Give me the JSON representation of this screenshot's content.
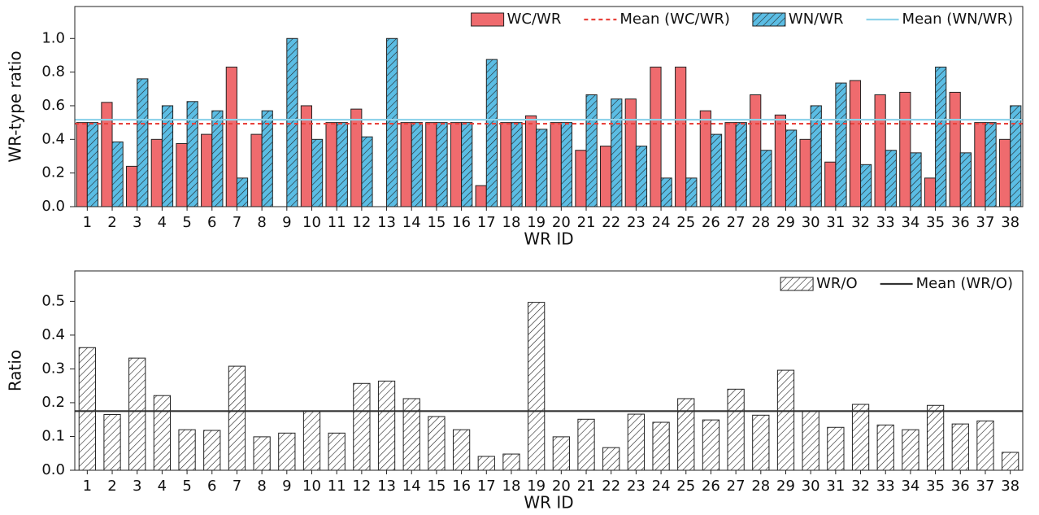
{
  "chart_data": [
    {
      "type": "bar",
      "ylabel": "WR-type ratio",
      "xlabel": "WR ID",
      "categories": [
        "1",
        "2",
        "3",
        "4",
        "5",
        "6",
        "7",
        "8",
        "9",
        "10",
        "11",
        "12",
        "13",
        "14",
        "15",
        "16",
        "17",
        "18",
        "19",
        "20",
        "21",
        "22",
        "23",
        "24",
        "25",
        "26",
        "27",
        "28",
        "29",
        "30",
        "31",
        "32",
        "33",
        "34",
        "35",
        "36",
        "37",
        "38"
      ],
      "series": [
        {
          "name": "WC/WR",
          "color": "#ef6b6e",
          "hatch": false,
          "values": [
            0.5,
            0.62,
            0.24,
            0.4,
            0.375,
            0.43,
            0.83,
            0.43,
            0,
            0.6,
            0.5,
            0.58,
            0,
            0.5,
            0.5,
            0.5,
            0.125,
            0.5,
            0.54,
            0.5,
            0.335,
            0.36,
            0.64,
            0.83,
            0.83,
            0.57,
            0.5,
            0.665,
            0.545,
            0.4,
            0.265,
            0.75,
            0.665,
            0.68,
            0.17,
            0.68,
            0.5,
            0.4
          ]
        },
        {
          "name": "WN/WR",
          "color": "#5bbde4",
          "hatch": true,
          "values": [
            0.5,
            0.385,
            0.76,
            0.6,
            0.625,
            0.57,
            0.17,
            0.57,
            1.0,
            0.4,
            0.5,
            0.415,
            1.0,
            0.5,
            0.5,
            0.5,
            0.875,
            0.5,
            0.46,
            0.5,
            0.665,
            0.64,
            0.36,
            0.17,
            0.17,
            0.43,
            0.5,
            0.335,
            0.455,
            0.6,
            0.735,
            0.25,
            0.335,
            0.32,
            0.83,
            0.32,
            0.5,
            0.6
          ]
        }
      ],
      "mean_lines": [
        {
          "name": "Mean (WC/WR)",
          "color": "#e8433d",
          "dashed": true,
          "value": 0.493
        },
        {
          "name": "Mean (WN/WR)",
          "color": "#8fd3ea",
          "dashed": false,
          "value": 0.517
        }
      ],
      "legend_order": [
        "series.0",
        "mean_lines.0",
        "series.1",
        "mean_lines.1"
      ],
      "legend": "upper right",
      "ylim": [
        0,
        1.19
      ],
      "yticks": [
        {
          "value": 0,
          "label": "0.0"
        },
        0.2,
        0.4,
        0.6,
        0.8,
        {
          "value": 1,
          "label": "1.0"
        }
      ]
    },
    {
      "type": "bar",
      "ylabel": "Ratio",
      "xlabel": "WR ID",
      "categories": [
        "1",
        "2",
        "3",
        "4",
        "5",
        "6",
        "7",
        "8",
        "9",
        "10",
        "11",
        "12",
        "13",
        "14",
        "15",
        "16",
        "17",
        "18",
        "19",
        "20",
        "21",
        "22",
        "23",
        "24",
        "25",
        "26",
        "27",
        "28",
        "29",
        "30",
        "31",
        "32",
        "33",
        "34",
        "35",
        "36",
        "37",
        "38"
      ],
      "series": [
        {
          "name": "WR/O",
          "color": "#ffffff",
          "hatch": true,
          "values": [
            0.363,
            0.165,
            0.332,
            0.221,
            0.12,
            0.118,
            0.308,
            0.099,
            0.11,
            0.175,
            0.11,
            0.257,
            0.264,
            0.212,
            0.159,
            0.12,
            0.041,
            0.048,
            0.497,
            0.099,
            0.151,
            0.067,
            0.166,
            0.142,
            0.212,
            0.149,
            0.24,
            0.163,
            0.296,
            0.175,
            0.127,
            0.195,
            0.134,
            0.12,
            0.192,
            0.137,
            0.146,
            0.053
          ]
        }
      ],
      "mean_lines": [
        {
          "name": "Mean (WR/O)",
          "color": "#333333",
          "dashed": false,
          "value": 0.175
        }
      ],
      "legend_order": [
        "series.0",
        "mean_lines.0"
      ],
      "legend": "upper right",
      "ylim": [
        0,
        0.59
      ],
      "yticks": [
        {
          "value": 0,
          "label": "0.0"
        },
        0.1,
        0.2,
        0.3,
        0.4,
        0.5
      ]
    }
  ]
}
